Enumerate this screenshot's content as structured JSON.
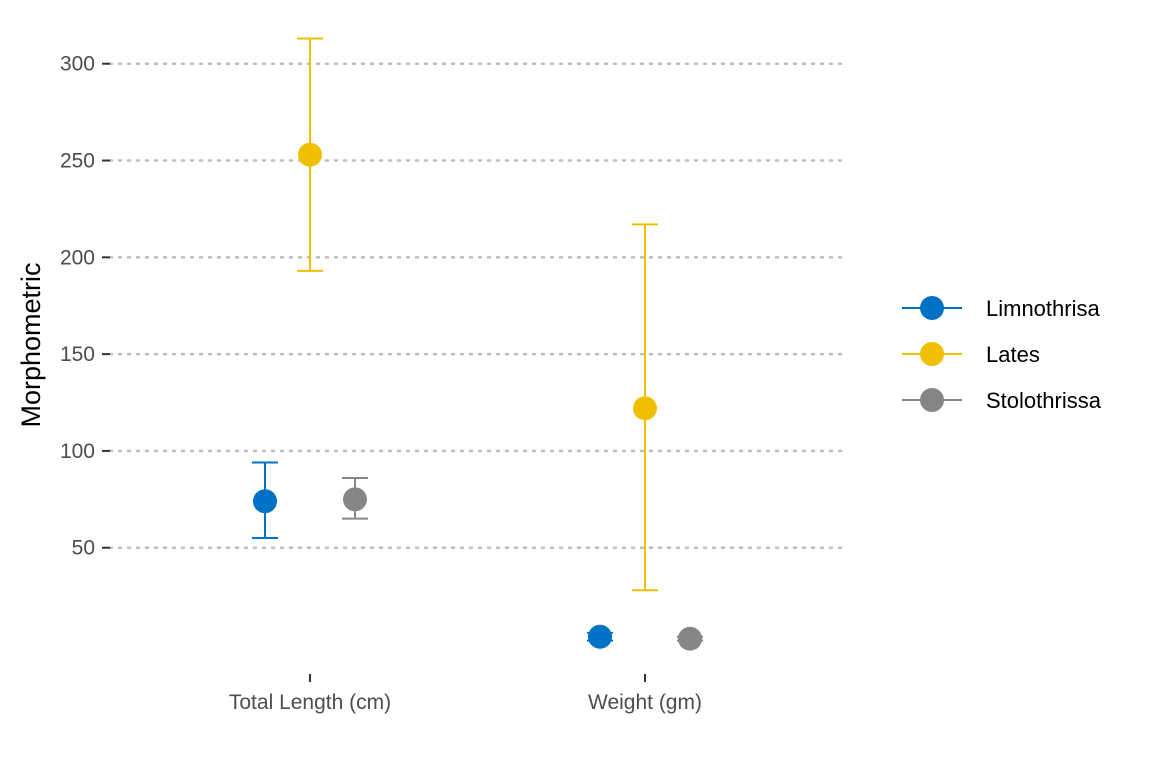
{
  "chart_data": {
    "type": "scatter",
    "title": "",
    "xlabel": "",
    "ylabel": "Morphometric",
    "categories": [
      "Total Length (cm)",
      "Weight (gm)"
    ],
    "y_ticks": [
      50,
      100,
      150,
      200,
      250,
      300
    ],
    "ylim": [
      -8,
      320
    ],
    "grid": "horizontal dotted",
    "legend_position": "right",
    "series": [
      {
        "name": "Limnothrisa",
        "color": "#0072C6",
        "points": [
          {
            "category": "Total Length (cm)",
            "mean": 74,
            "lower": 55,
            "upper": 94
          },
          {
            "category": "Weight (gm)",
            "mean": 4,
            "lower": 2,
            "upper": 6
          }
        ]
      },
      {
        "name": "Lates",
        "color": "#F0C000",
        "points": [
          {
            "category": "Total Length (cm)",
            "mean": 253,
            "lower": 193,
            "upper": 313
          },
          {
            "category": "Weight (gm)",
            "mean": 122,
            "lower": 28,
            "upper": 217
          }
        ]
      },
      {
        "name": "Stolothrissa",
        "color": "#868686",
        "points": [
          {
            "category": "Total Length (cm)",
            "mean": 75,
            "lower": 65,
            "upper": 86
          },
          {
            "category": "Weight (gm)",
            "mean": 3,
            "lower": 2,
            "upper": 4
          }
        ]
      }
    ]
  }
}
